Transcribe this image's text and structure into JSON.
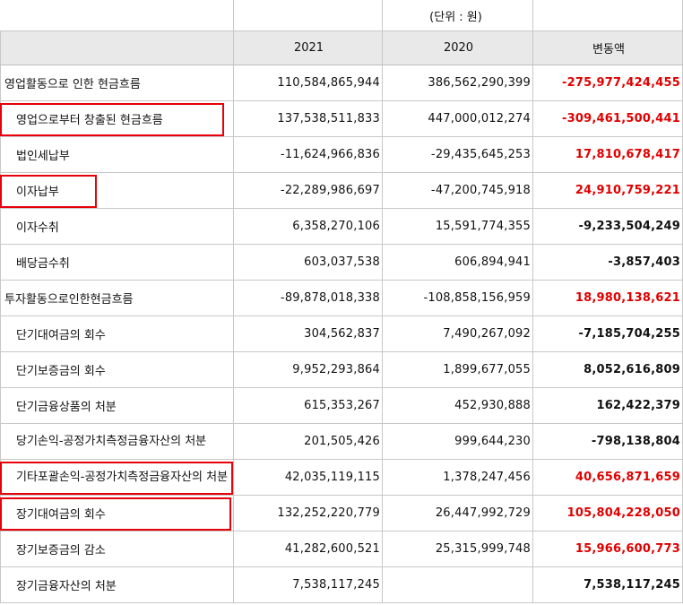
{
  "unit_label": "(단위 : 원)",
  "headers": [
    "",
    "2021",
    "2020",
    "변동액"
  ],
  "rows": [
    {
      "label": "영업활동으로 인한 현금흐름",
      "y2021": "110,584,865,944",
      "y2020": "386,562,290,399",
      "change": "-275,977,424,455",
      "change_color": "red",
      "indent": false,
      "highlighted": false
    },
    {
      "label": "영업으로부터 창출된 현금흐름",
      "y2021": "137,538,511,833",
      "y2020": "447,000,012,274",
      "change": "-309,461,500,441",
      "change_color": "red",
      "indent": true,
      "highlighted": true
    },
    {
      "label": "법인세납부",
      "y2021": "-11,624,966,836",
      "y2020": "-29,435,645,253",
      "change": "17,810,678,417",
      "change_color": "red",
      "indent": true,
      "highlighted": false
    },
    {
      "label": "이자납부",
      "y2021": "-22,289,986,697",
      "y2020": "-47,200,745,918",
      "change": "24,910,759,221",
      "change_color": "red",
      "indent": true,
      "highlighted": true
    },
    {
      "label": "이자수취",
      "y2021": "6,358,270,106",
      "y2020": "15,591,774,355",
      "change": "-9,233,504,249",
      "change_color": "black",
      "indent": true,
      "highlighted": false
    },
    {
      "label": "배당금수취",
      "y2021": "603,037,538",
      "y2020": "606,894,941",
      "change": "-3,857,403",
      "change_color": "black",
      "indent": true,
      "highlighted": false
    },
    {
      "label": "투자활동으로인한현금흐름",
      "y2021": "-89,878,018,338",
      "y2020": "-108,858,156,959",
      "change": "18,980,138,621",
      "change_color": "red",
      "indent": false,
      "highlighted": false
    },
    {
      "label": "단기대여금의 회수",
      "y2021": "304,562,837",
      "y2020": "7,490,267,092",
      "change": "-7,185,704,255",
      "change_color": "black",
      "indent": true,
      "highlighted": false
    },
    {
      "label": "단기보증금의 회수",
      "y2021": "9,952,293,864",
      "y2020": "1,899,677,055",
      "change": "8,052,616,809",
      "change_color": "black",
      "indent": true,
      "highlighted": false
    },
    {
      "label": "단기금융상품의 처분",
      "y2021": "615,353,267",
      "y2020": "452,930,888",
      "change": "162,422,379",
      "change_color": "black",
      "indent": true,
      "highlighted": false
    },
    {
      "label": "당기손익-공정가치측정금융자산의 처분",
      "y2021": "201,505,426",
      "y2020": "999,644,230",
      "change": "-798,138,804",
      "change_color": "black",
      "indent": true,
      "highlighted": false
    },
    {
      "label": "기타포괄손익-공정가치측정금융자산의 처분",
      "y2021": "42,035,119,115",
      "y2020": "1,378,247,456",
      "change": "40,656,871,659",
      "change_color": "red",
      "indent": true,
      "highlighted": true
    },
    {
      "label": "장기대여금의 회수",
      "y2021": "132,252,220,779",
      "y2020": "26,447,992,729",
      "change": "105,804,228,050",
      "change_color": "red",
      "indent": true,
      "highlighted": true
    },
    {
      "label": "장기보증금의 감소",
      "y2021": "41,282,600,521",
      "y2020": "25,315,999,748",
      "change": "15,966,600,773",
      "change_color": "red",
      "indent": true,
      "highlighted": false
    },
    {
      "label": "장기금융자산의 처분",
      "y2021": "7,538,117,245",
      "y2020": "",
      "change": "7,538,117,245",
      "change_color": "black",
      "indent": true,
      "highlighted": false
    }
  ]
}
